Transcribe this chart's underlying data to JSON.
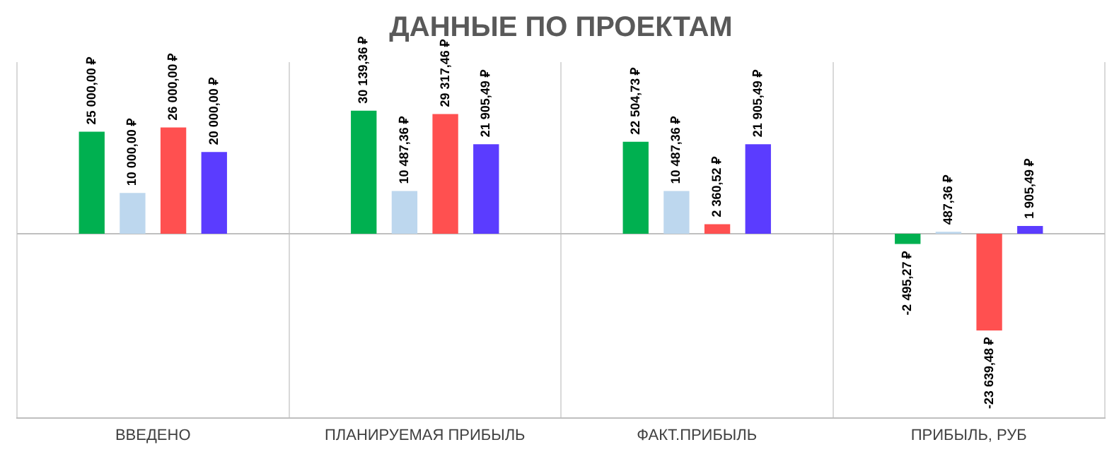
{
  "chart_data": {
    "type": "bar",
    "title": "ДАННЫЕ ПО ПРОЕКТАМ",
    "categories": [
      "ВВЕДЕНО",
      "ПЛАНИРУЕМАЯ ПРИБЫЛЬ",
      "ФАКТ.ПРИБЫЛЬ",
      "ПРИБЫЛЬ, РУБ"
    ],
    "ylim": [
      -45000,
      42000
    ],
    "grid": "x",
    "legend": false,
    "series": [
      {
        "color": "#00b050",
        "values": [
          25000,
          30139.36,
          22504.73,
          -2495.27
        ],
        "value_labels": [
          "25 000,00 ₽",
          "30 139,36 ₽",
          "22 504,73 ₽",
          "-2 495,27 ₽"
        ]
      },
      {
        "color": "#bdd7ee",
        "values": [
          10000,
          10487.36,
          10487.36,
          487.36
        ],
        "value_labels": [
          "10 000,00 ₽",
          "10 487,36 ₽",
          "10 487,36 ₽",
          "487,36 ₽"
        ]
      },
      {
        "color": "#ff5050",
        "values": [
          26000,
          29317.46,
          2360.52,
          -23639.48
        ],
        "value_labels": [
          "26 000,00 ₽",
          "29 317,46 ₽",
          "2 360,52 ₽",
          "-23 639,48 ₽"
        ]
      },
      {
        "color": "#5b3cff",
        "values": [
          20000,
          21905.49,
          21905.49,
          1905.49
        ],
        "value_labels": [
          "20 000,00 ₽",
          "21 905,49 ₽",
          "21 905,49 ₽",
          "1 905,49 ₽"
        ]
      }
    ]
  }
}
